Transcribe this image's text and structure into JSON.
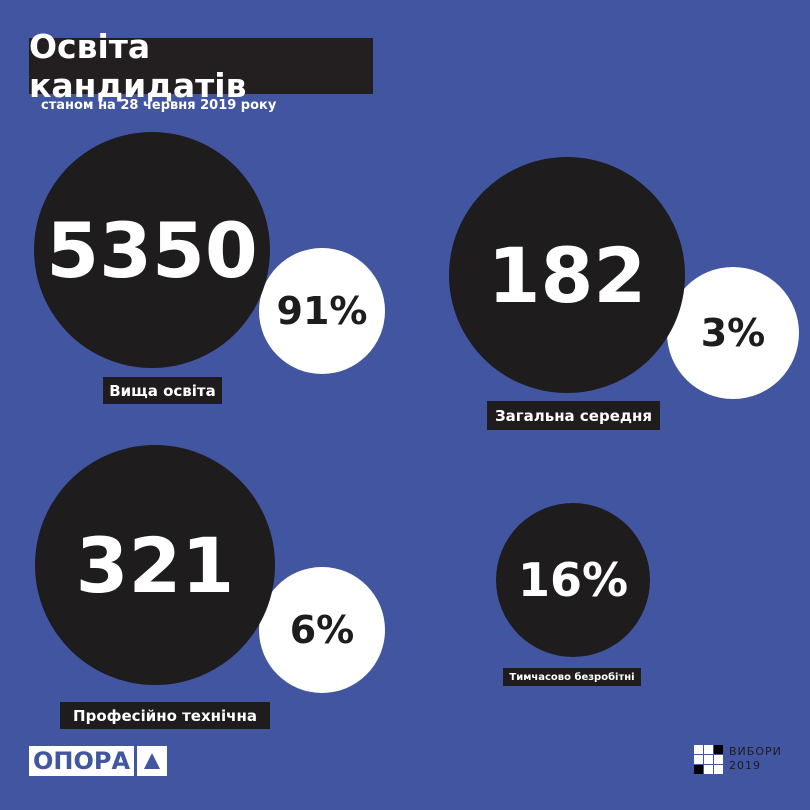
{
  "title": "Освіта кандидатів",
  "subtitle": "станом на 28 червня 2019 року",
  "items": [
    {
      "count": "5350",
      "percent": "91%",
      "label": "Вища освіта"
    },
    {
      "count": "182",
      "percent": "3%",
      "label": "Загальна середня"
    },
    {
      "count": "321",
      "percent": "6%",
      "label": "Професійно технічна"
    },
    {
      "percent": "16%",
      "label": "Тимчасово безробітні"
    }
  ],
  "logos": {
    "opora": "ОПОРА",
    "vybory_line1": "ВИБОРИ",
    "vybory_line2": "2019"
  },
  "colors": {
    "background": "#4255a0",
    "circle": "#1e1c1d",
    "accent": "#ffffff"
  }
}
